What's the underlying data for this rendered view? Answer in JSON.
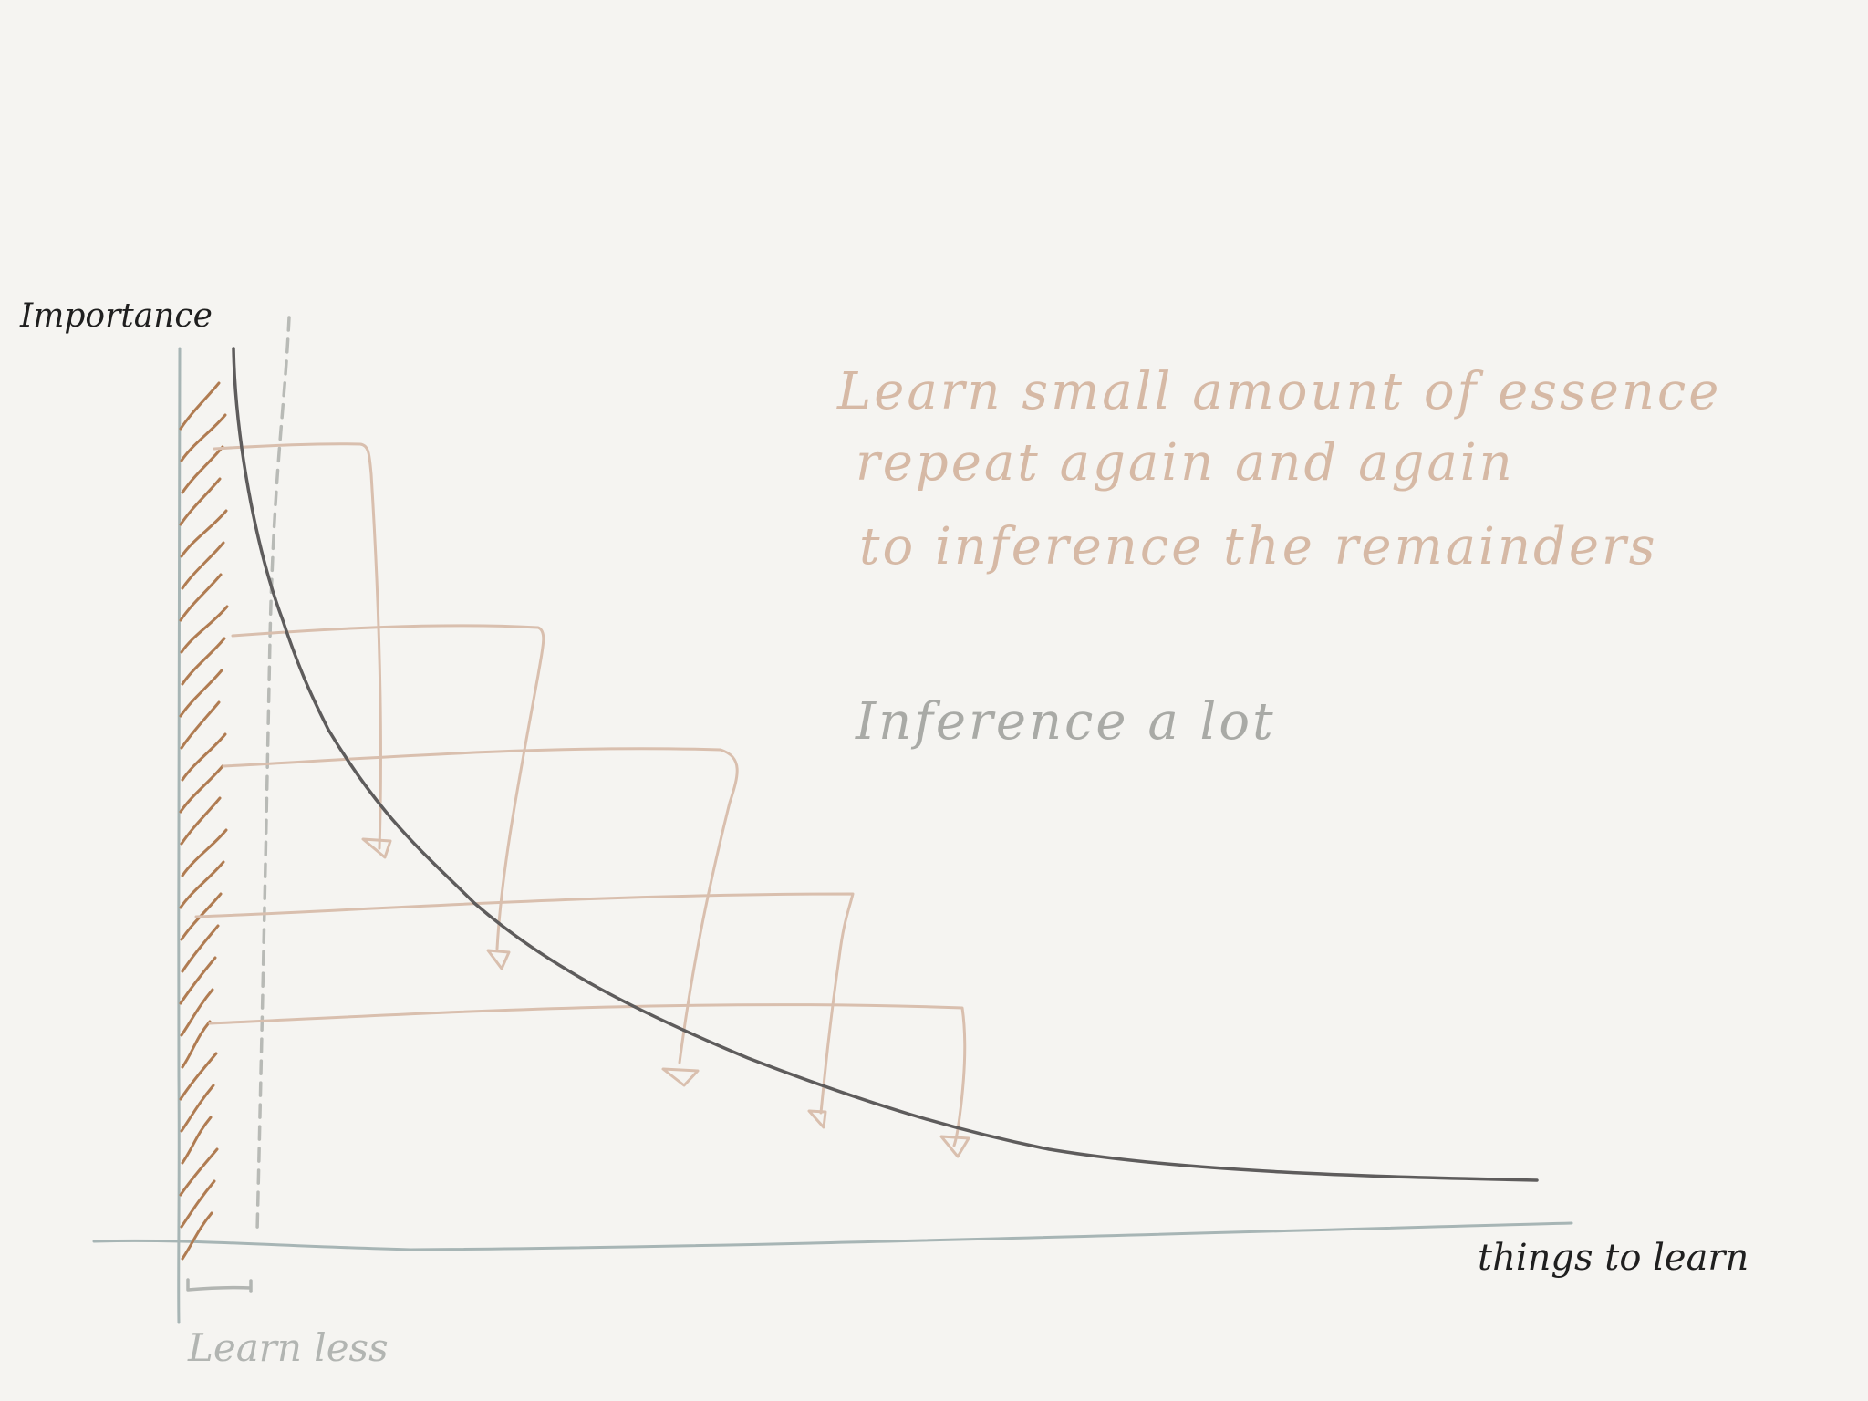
{
  "labels": {
    "y_axis": "Importance",
    "x_axis": "things to learn",
    "bracket": "Learn less"
  },
  "notes": {
    "line1": "Learn small amount of essence",
    "line2": "repeat again and again",
    "line3": "to inference the remainders",
    "line4": "Inference a lot"
  },
  "colors": {
    "background": "#f5f4f1",
    "axis": "#a7b5b5",
    "curve": "#5e5c5c",
    "hatch": "#b07c52",
    "arrows": "#d9bfae",
    "note_text": "#d6b9a5",
    "inference_text": "#a9aaa6",
    "label_text": "#1f1f1f",
    "bracket": "#b2b5b2"
  }
}
